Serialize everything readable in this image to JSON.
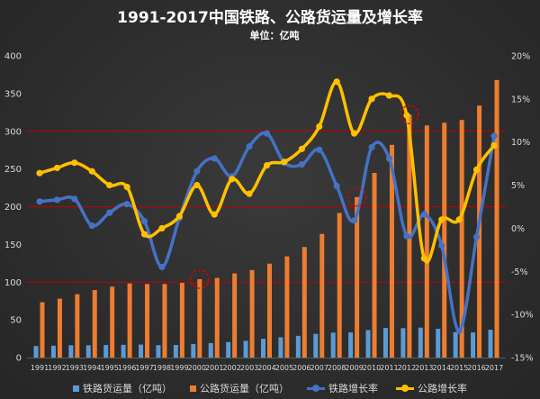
{
  "chart_data": {
    "type": "bar",
    "title": "1991-2017中国铁路、公路货运量及增长率",
    "subtitle": "单位：亿吨",
    "categories": [
      "1991",
      "1992",
      "1993",
      "1994",
      "1995",
      "1996",
      "1997",
      "1998",
      "1999",
      "2000",
      "2001",
      "2002",
      "2003",
      "2004",
      "2005",
      "2006",
      "2007",
      "2008",
      "2009",
      "2010",
      "2011",
      "2012",
      "2013",
      "2014",
      "2015",
      "2016",
      "2017"
    ],
    "y_left": {
      "min": 0,
      "max": 400,
      "tick_labels": [
        "0",
        "50",
        "100",
        "150",
        "200",
        "250",
        "300",
        "350",
        "400"
      ]
    },
    "y_right": {
      "min": -15,
      "max": 20,
      "tick_labels": [
        "-15%",
        "-10%",
        "-5%",
        "0%",
        "5%",
        "10%",
        "15%",
        "20%"
      ]
    },
    "series": [
      {
        "name": "铁路货运量（亿吨）",
        "type": "bar",
        "axis": "left",
        "color": "#5b9bd5",
        "values": [
          15.3,
          15.8,
          16.3,
          16.3,
          16.6,
          16.9,
          17.2,
          16.4,
          16.7,
          17.9,
          19.3,
          20.5,
          22.2,
          24.9,
          26.9,
          28.8,
          31.4,
          33.0,
          33.3,
          36.4,
          39.3,
          39.0,
          39.7,
          38.1,
          33.6,
          33.3,
          36.9
        ]
      },
      {
        "name": "公路货运量（亿吨）",
        "type": "bar",
        "axis": "left",
        "color": "#ed7d31",
        "values": [
          73.4,
          78.1,
          84.0,
          89.5,
          94.0,
          98.3,
          97.6,
          97.6,
          99.0,
          103.9,
          105.6,
          111.6,
          116.0,
          124.5,
          134.2,
          146.6,
          163.9,
          191.7,
          212.8,
          244.8,
          282.0,
          322.1,
          307.7,
          311.3,
          315.0,
          334.1,
          368.0
        ]
      },
      {
        "name": "铁路增长率",
        "type": "line",
        "axis": "right",
        "color": "#4472c4",
        "values": [
          3.1,
          3.3,
          3.4,
          0.3,
          1.8,
          2.8,
          0.8,
          -4.5,
          1.2,
          6.6,
          8.1,
          6.0,
          9.5,
          11.0,
          7.6,
          7.4,
          9.1,
          4.9,
          0.9,
          9.4,
          8.1,
          -0.9,
          1.6,
          -2.0,
          -11.9,
          -1.0,
          10.7
        ]
      },
      {
        "name": "公路增长率",
        "type": "line",
        "axis": "right",
        "color": "#ffc000",
        "values": [
          6.4,
          7.0,
          7.6,
          6.6,
          5.0,
          4.8,
          -0.7,
          0.0,
          1.4,
          5.0,
          1.6,
          5.7,
          4.0,
          7.3,
          7.7,
          9.2,
          11.8,
          17.0,
          11.0,
          15.0,
          15.4,
          13.1,
          -3.5,
          1.0,
          1.0,
          6.8,
          9.6
        ]
      }
    ],
    "reference_lines": {
      "axis": "left",
      "values": [
        100,
        200,
        300
      ],
      "color": "#c00000"
    },
    "highlighted_points": {
      "series_index": 1,
      "categories": [
        "2000",
        "2009",
        "2012"
      ],
      "color": "#e00000"
    },
    "grid": false,
    "legend": "bottom"
  }
}
